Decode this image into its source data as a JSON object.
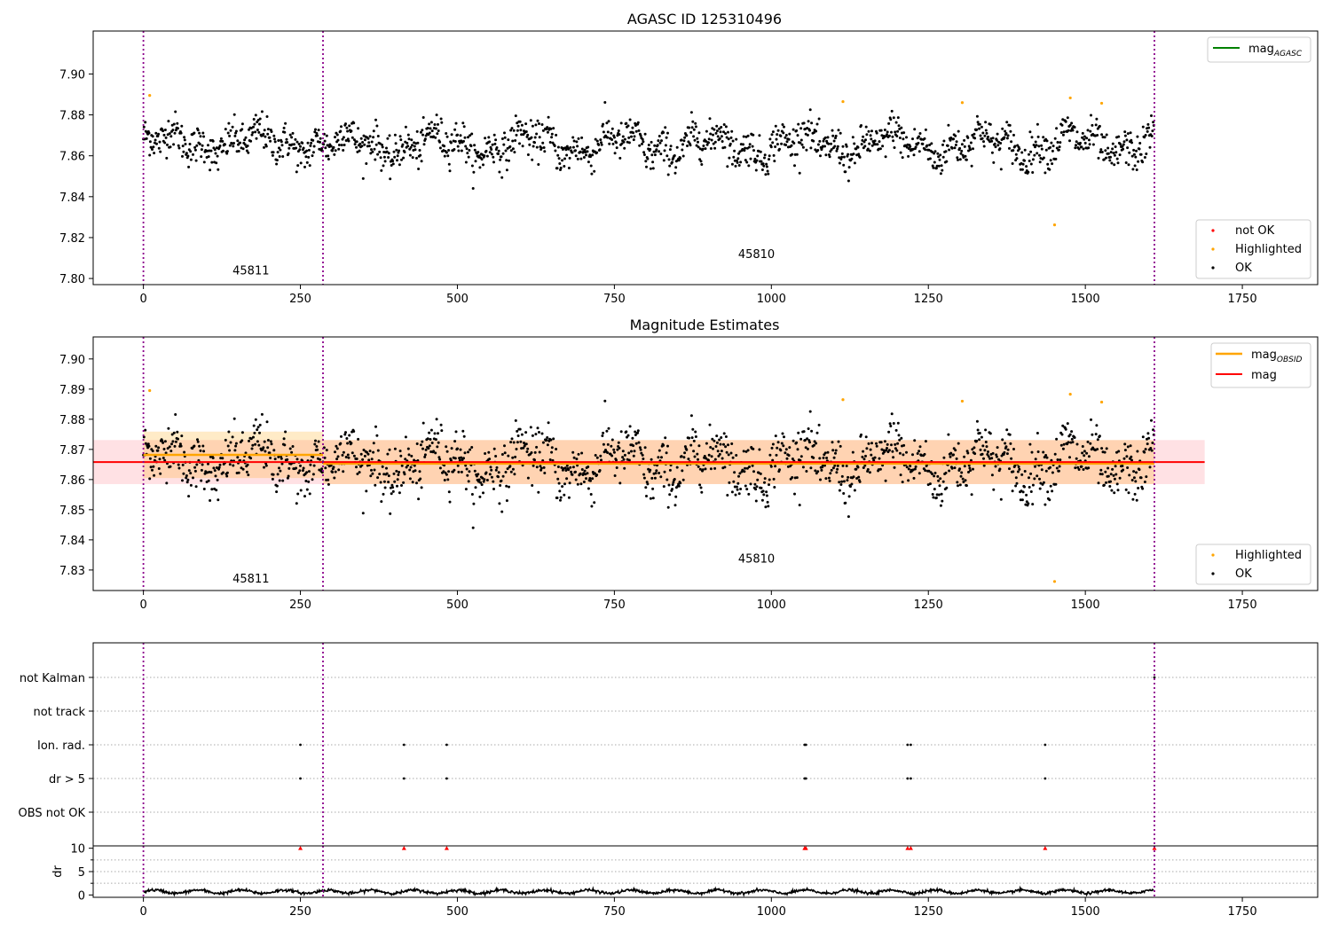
{
  "figure": {
    "title": "AGASC ID 125310496",
    "obsid_labels": [
      "45811",
      "45810"
    ]
  },
  "chart_data": [
    {
      "type": "scatter",
      "panel": "agasc",
      "title": "AGASC ID 125310496",
      "xlim": [
        -80,
        1870
      ],
      "ylim": [
        7.797,
        7.921
      ],
      "x_ticks": [
        0,
        250,
        500,
        750,
        1000,
        1250,
        1500,
        1750
      ],
      "y_ticks": [
        7.8,
        7.82,
        7.84,
        7.86,
        7.88,
        7.9
      ],
      "y_tick_labels": [
        "7.80",
        "7.82",
        "7.84",
        "7.86",
        "7.88",
        "7.90"
      ],
      "n_points": 1610,
      "obsid_boundaries": [
        0,
        286,
        1610
      ],
      "obsid_labels": [
        {
          "text": "45811",
          "x": 143,
          "y": 7.802
        },
        {
          "text": "45810",
          "x": 948,
          "y": 7.81
        }
      ],
      "line_legend": [
        {
          "label": "mag",
          "sub": "AGASC",
          "color": "#008000"
        }
      ],
      "marker_legend": [
        {
          "label": "not OK",
          "color": "#ff0000"
        },
        {
          "label": "Highlighted",
          "color": "#ffa500"
        },
        {
          "label": "OK",
          "color": "#000000"
        }
      ],
      "segments": [
        {
          "x0": 0,
          "x1": 286,
          "mean": 7.8665,
          "amp": 0.007
        },
        {
          "x0": 286,
          "x1": 1610,
          "mean": 7.8655,
          "amp": 0.008
        }
      ],
      "highlighted_points": [
        {
          "x": 10,
          "y": 7.8895
        },
        {
          "x": 1114,
          "y": 7.8865
        },
        {
          "x": 1304,
          "y": 7.886
        },
        {
          "x": 1451,
          "y": 7.8262
        },
        {
          "x": 1476,
          "y": 7.8883
        },
        {
          "x": 1526,
          "y": 7.8857
        }
      ]
    },
    {
      "type": "scatter",
      "panel": "estimates",
      "title": "Magnitude Estimates",
      "xlim": [
        -80,
        1870
      ],
      "ylim": [
        7.8232,
        7.9073
      ],
      "x_ticks": [
        0,
        250,
        500,
        750,
        1000,
        1250,
        1500,
        1750
      ],
      "y_ticks": [
        7.83,
        7.84,
        7.85,
        7.86,
        7.87,
        7.88,
        7.89,
        7.9
      ],
      "y_tick_labels": [
        "7.83",
        "7.84",
        "7.85",
        "7.86",
        "7.87",
        "7.88",
        "7.89",
        "7.90"
      ],
      "obsid_boundaries": [
        0,
        286,
        1610
      ],
      "obsid_labels": [
        {
          "text": "45811",
          "x": 143,
          "y": 7.8259
        },
        {
          "text": "45810",
          "x": 948,
          "y": 7.8325
        }
      ],
      "mag": {
        "label": "mag",
        "value": 7.8658,
        "band": [
          7.8585,
          7.8731
        ],
        "x_range": [
          -80,
          1690
        ],
        "color": "#ff0000"
      },
      "mag_obsid": [
        {
          "label": "mag",
          "sub": "OBSID",
          "x0": 0,
          "x1": 286,
          "value": 7.8682,
          "band": [
            7.8605,
            7.8759
          ],
          "color": "#ffa500"
        },
        {
          "label": "mag",
          "sub": "OBSID",
          "x0": 286,
          "x1": 1610,
          "value": 7.8653,
          "band": [
            7.8585,
            7.8731
          ],
          "color": "#ffa500"
        }
      ],
      "line_legend": [
        {
          "label": "mag",
          "sub": "OBSID",
          "color": "#ffa500"
        },
        {
          "label": "mag",
          "sub": "",
          "color": "#ff0000"
        }
      ],
      "marker_legend": [
        {
          "label": "Highlighted",
          "color": "#ffa500"
        },
        {
          "label": "OK",
          "color": "#000000"
        }
      ]
    },
    {
      "type": "scatter",
      "panel": "flags",
      "xlim": [
        -80,
        1870
      ],
      "categories": [
        "not Kalman",
        "not track",
        "Ion. rad.",
        "dr > 5",
        "OBS not OK"
      ],
      "events": [
        {
          "category": "Ion. rad.",
          "x": [
            250,
            415,
            483,
            1053,
            1055,
            1217,
            1222,
            1436
          ]
        },
        {
          "category": "dr > 5",
          "x": [
            250,
            415,
            483,
            1053,
            1055,
            1217,
            1222,
            1436
          ]
        },
        {
          "category": "not Kalman",
          "x": [
            1610
          ]
        }
      ]
    },
    {
      "type": "line",
      "panel": "dr",
      "xlim": [
        -80,
        1870
      ],
      "ylim": [
        -0.5,
        10.5
      ],
      "ylabel": "dr",
      "y_ticks": [
        0,
        5,
        10
      ],
      "y_tick_labels": [
        "0",
        "5",
        "10"
      ],
      "x_ticks": [
        0,
        250,
        500,
        750,
        1000,
        1250,
        1500,
        1750
      ],
      "x_tick_labels": [
        "0",
        "250",
        "500",
        "750",
        "1000",
        "1250",
        "1500",
        "1750"
      ],
      "dr_typical": [
        0.2,
        1.2
      ],
      "clipped_markers": [
        250,
        415,
        483,
        1053,
        1055,
        1217,
        1222,
        1436,
        1610
      ]
    }
  ]
}
